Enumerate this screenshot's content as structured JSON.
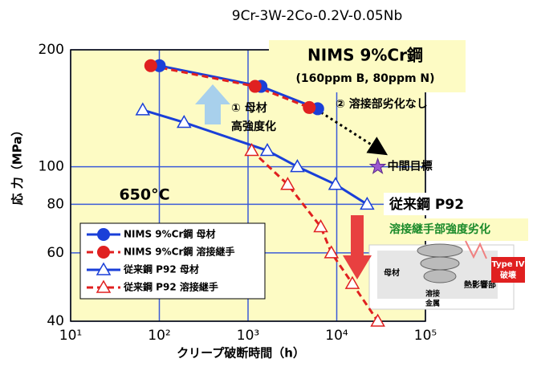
{
  "chart_data": {
    "type": "line",
    "subtitle": "9Cr-3W-2Co-0.2V-0.05Nb",
    "x_label": "クリープ破断時間（h）",
    "y_label": "応 力（MPa）",
    "xlim": [
      10,
      100000
    ],
    "ylim": [
      40,
      200
    ],
    "log_x": true,
    "log_y": true,
    "grid": true,
    "xticks": [
      {
        "value": 10,
        "label": "10¹"
      },
      {
        "value": 100,
        "label": "10²"
      },
      {
        "value": 1000,
        "label": "10³"
      },
      {
        "value": 10000,
        "label": "10⁴"
      },
      {
        "value": 100000,
        "label": "10⁵"
      }
    ],
    "yticks": [
      40,
      60,
      80,
      100,
      200
    ],
    "series": [
      {
        "name": "NIMS 9%Cr鋼 母材",
        "color": "#1a3fd8",
        "marker": "circle",
        "dash": false,
        "x": [
          100,
          1400,
          6100
        ],
        "values": [
          182,
          161,
          141
        ]
      },
      {
        "name": "NIMS 9%Cr鋼 溶接継手",
        "color": "#e02020",
        "marker": "circle",
        "dash": true,
        "x": [
          80,
          1200,
          4900
        ],
        "values": [
          182,
          161,
          142
        ]
      },
      {
        "name": "従来鋼 P92 母材",
        "color": "#1a3fd8",
        "marker": "triangle",
        "dash": false,
        "x": [
          65,
          190,
          1650,
          3600,
          9700,
          22000
        ],
        "values": [
          140,
          130,
          110,
          100,
          90,
          80
        ]
      },
      {
        "name": "従来鋼 P92 溶接継手",
        "color": "#e02020",
        "marker": "triangle",
        "dash": true,
        "x": [
          1100,
          2800,
          6600,
          8700,
          15000,
          29000
        ],
        "values": [
          110,
          90,
          70,
          60,
          50,
          40
        ]
      }
    ],
    "target": {
      "label": "中間目標",
      "x": 29000,
      "value": 100
    },
    "annotations": {
      "steel": "NIMS 9%Cr鋼",
      "additives": "(160ppm B, 80ppm N)",
      "base_1": "① 母材",
      "base_2": "高強度化",
      "weld": "② 溶接部劣化なし",
      "temperature": "650°C",
      "p92": "従来鋼 P92",
      "weld_degradation": "溶接継手部強度劣化",
      "inset_base": "母材",
      "inset_haz": "熱影響部",
      "inset_weld_1": "溶接",
      "inset_weld_2": "金属",
      "type4_1": "Type IV",
      "type4_2": "破壊"
    }
  }
}
